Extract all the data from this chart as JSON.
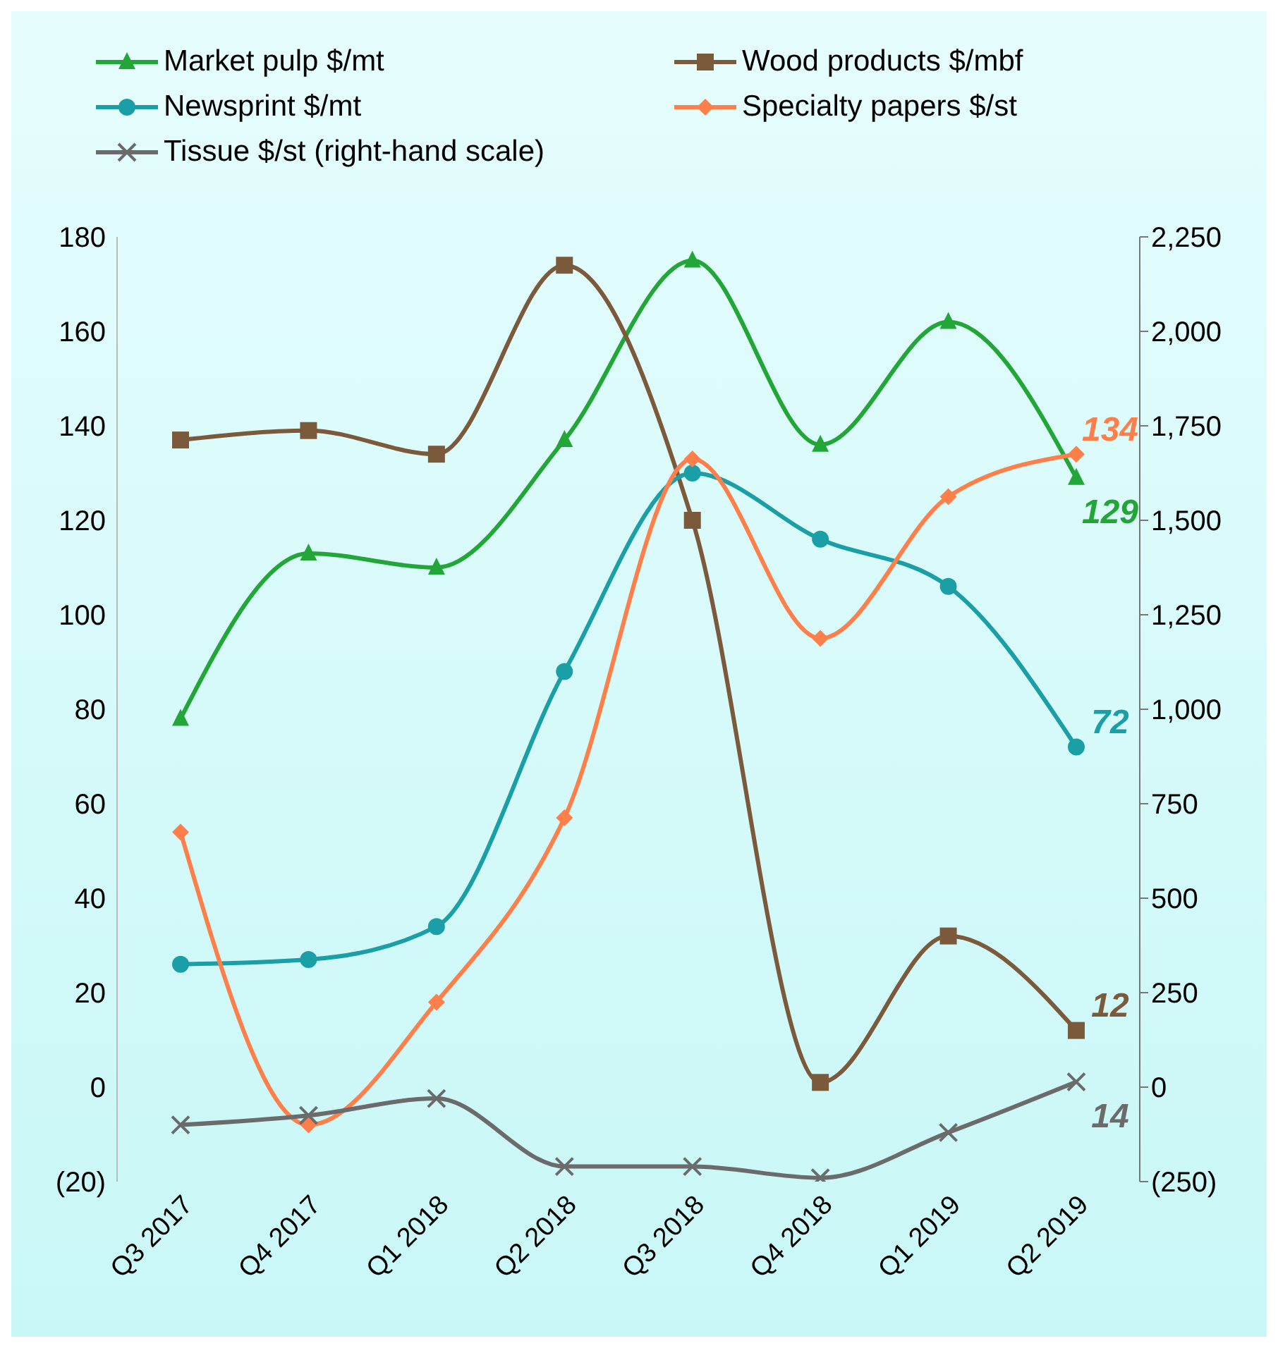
{
  "chart_data": {
    "type": "line",
    "categories": [
      "Q3 2017",
      "Q4 2017",
      "Q1 2018",
      "Q2 2018",
      "Q3 2018",
      "Q4 2018",
      "Q1 2019",
      "Q2 2019"
    ],
    "series": [
      {
        "name": "Market pulp $/mt",
        "color": "#22a638",
        "marker": "triangle",
        "values": [
          78,
          113,
          110,
          137,
          175,
          136,
          162,
          129
        ],
        "value_labels": [
          null,
          null,
          null,
          null,
          null,
          null,
          null,
          "129"
        ]
      },
      {
        "name": "Wood products $/mbf",
        "color": "#7b5a3c",
        "marker": "square",
        "values": [
          137,
          139,
          134,
          174,
          120,
          1,
          32,
          12
        ],
        "value_labels": [
          null,
          null,
          null,
          null,
          null,
          null,
          null,
          "12"
        ]
      },
      {
        "name": "Newsprint $/mt",
        "color": "#1a9fa6",
        "marker": "circle",
        "values": [
          26,
          27,
          34,
          88,
          130,
          116,
          106,
          72
        ],
        "value_labels": [
          null,
          null,
          null,
          null,
          null,
          null,
          null,
          "72"
        ]
      },
      {
        "name": "Specialty papers $/st",
        "color": "#ff7f4a",
        "marker": "diamond",
        "values": [
          54,
          -8,
          18,
          57,
          133,
          95,
          125,
          134
        ],
        "value_labels": [
          null,
          null,
          null,
          null,
          null,
          null,
          null,
          "134"
        ]
      },
      {
        "name": "Tissue $/st (right-hand scale)",
        "color": "#6b6b6b",
        "marker": "cross",
        "axis": "y2",
        "values": [
          -100,
          -75,
          -30,
          -210,
          -210,
          -240,
          -120,
          14
        ],
        "value_labels": [
          null,
          null,
          null,
          null,
          null,
          null,
          null,
          "14"
        ]
      }
    ],
    "ylim": [
      -20,
      180
    ],
    "yticks": [
      {
        "value": -20,
        "label": "(20)"
      },
      0,
      20,
      40,
      60,
      80,
      100,
      120,
      140,
      160,
      180
    ],
    "y2lim": [
      -250,
      2250
    ],
    "y2ticks": [
      {
        "value": -250,
        "label": "(250)"
      },
      0,
      250,
      500,
      750,
      {
        "value": 1000,
        "label": "1,000"
      },
      {
        "value": 1250,
        "label": "1,250"
      },
      {
        "value": 1500,
        "label": "1,500"
      },
      {
        "value": 1750,
        "label": "1,750"
      },
      {
        "value": 2000,
        "label": "2,000"
      },
      {
        "value": 2250,
        "label": "2,250"
      }
    ],
    "legend": "top",
    "line_style": "solid"
  }
}
